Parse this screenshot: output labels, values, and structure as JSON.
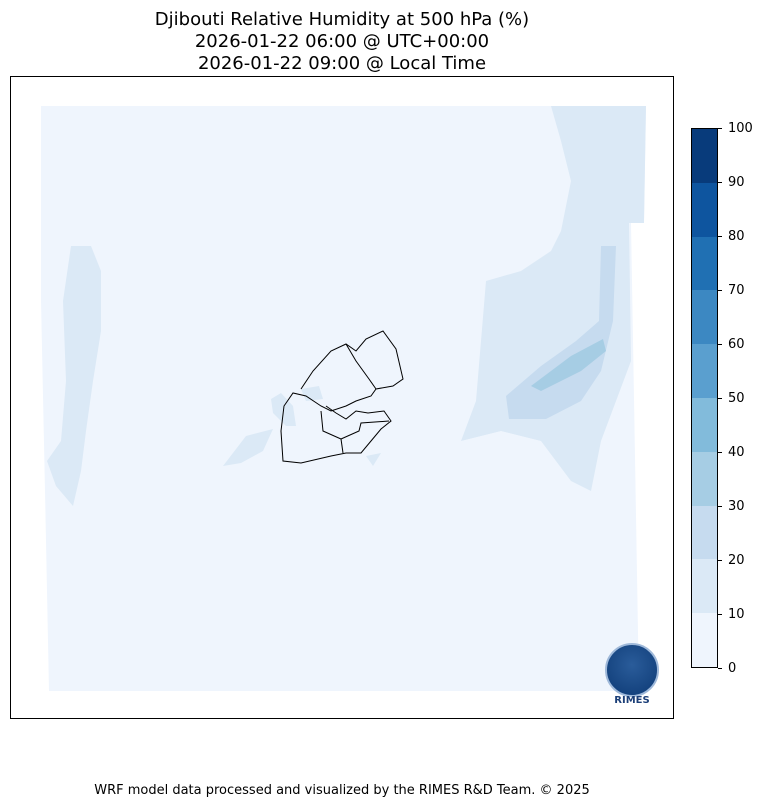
{
  "title": {
    "line1": "Djibouti Relative Humidity at 500 hPa (%)",
    "line2": "2026-01-22 06:00 @ UTC+00:00",
    "line3": "2026-01-22 09:00 @ Local Time"
  },
  "colorbar": {
    "ticks": [
      "0",
      "10",
      "20",
      "30",
      "40",
      "50",
      "60",
      "70",
      "80",
      "90",
      "100"
    ],
    "colors": [
      "#eff5fd",
      "#dbe9f6",
      "#c6dbef",
      "#a6cde4",
      "#82bbdb",
      "#5a9fcf",
      "#3c88c2",
      "#2070b3",
      "#0e559f",
      "#083b7b"
    ]
  },
  "logo": {
    "text": "RIMES"
  },
  "footer": "WRF model data processed and visualized by the RIMES R&D Team. © 2025"
}
